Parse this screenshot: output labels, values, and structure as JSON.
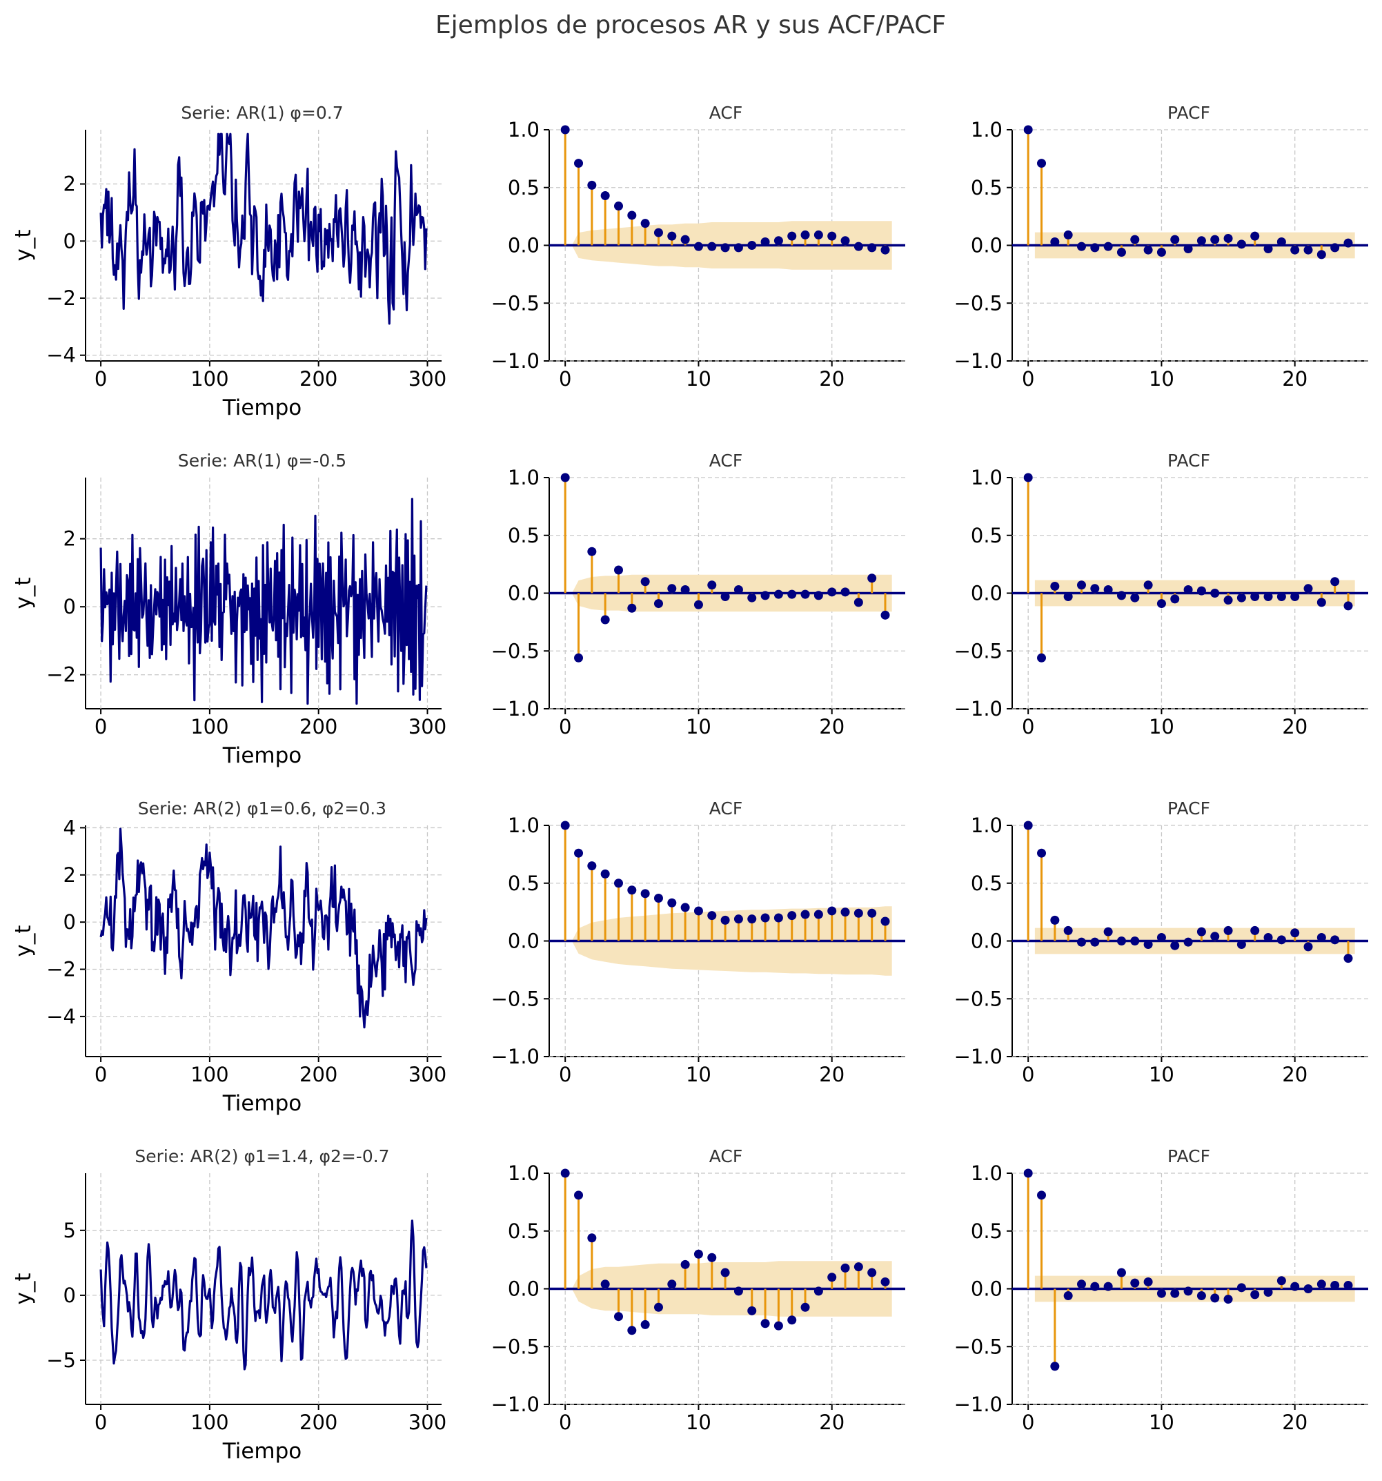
{
  "title": "Ejemplos de procesos AR y sus ACF/PACF",
  "colors": {
    "series": "#000080",
    "stem": "#e8960c",
    "band": "#f7e4bd",
    "grid": "#c8c8c8",
    "text": "#333333",
    "axis": "#000000"
  },
  "labels": {
    "xlabel_series": "Tiempo",
    "ylabel_series": "y_t",
    "acf": "ACF",
    "pacf": "PACF"
  },
  "rows": [
    {
      "title": "Serie: AR(1) φ=0.7",
      "series": {
        "type": "line",
        "n": 300,
        "phi": [
          0.7
        ],
        "noise_sd": 1.0,
        "ylim": [
          -4.2,
          3.9
        ],
        "yticks": [
          -4,
          -2,
          0,
          2
        ],
        "xticks": [
          0,
          100,
          200,
          300
        ],
        "xlim": [
          -14,
          313
        ]
      },
      "acf": {
        "type": "stem",
        "values": [
          1.0,
          0.71,
          0.52,
          0.43,
          0.34,
          0.26,
          0.19,
          0.11,
          0.08,
          0.05,
          -0.01,
          -0.01,
          -0.02,
          -0.02,
          0.0,
          0.03,
          0.04,
          0.08,
          0.09,
          0.09,
          0.08,
          0.04,
          -0.01,
          -0.02,
          -0.04
        ],
        "band_lo": [
          0.0,
          0.11,
          0.13,
          0.14,
          0.15,
          0.16,
          0.17,
          0.18,
          0.18,
          0.19,
          0.19,
          0.2,
          0.2,
          0.2,
          0.2,
          0.2,
          0.2,
          0.21,
          0.21,
          0.21,
          0.21,
          0.21,
          0.21,
          0.21,
          0.21
        ],
        "band_hi": [
          0.0,
          0.11,
          0.13,
          0.14,
          0.15,
          0.16,
          0.17,
          0.18,
          0.18,
          0.19,
          0.19,
          0.2,
          0.2,
          0.2,
          0.2,
          0.2,
          0.2,
          0.21,
          0.21,
          0.21,
          0.21,
          0.21,
          0.21,
          0.21,
          0.21
        ]
      },
      "pacf": {
        "type": "stem",
        "values": [
          1.0,
          0.71,
          0.03,
          0.09,
          -0.01,
          -0.02,
          -0.01,
          -0.06,
          0.05,
          -0.04,
          -0.06,
          0.05,
          -0.03,
          0.04,
          0.05,
          0.06,
          0.01,
          0.08,
          -0.03,
          0.03,
          -0.04,
          -0.04,
          -0.08,
          -0.02,
          0.02
        ],
        "band": 0.113
      }
    },
    {
      "title": "Serie: AR(1) φ=-0.5",
      "series": {
        "type": "line",
        "n": 300,
        "phi": [
          -0.5
        ],
        "noise_sd": 1.0,
        "ylim": [
          -3.0,
          3.8
        ],
        "yticks": [
          -2,
          0,
          2
        ],
        "xticks": [
          0,
          100,
          200,
          300
        ],
        "xlim": [
          -14,
          313
        ]
      },
      "acf": {
        "type": "stem",
        "values": [
          1.0,
          -0.56,
          0.36,
          -0.23,
          0.2,
          -0.13,
          0.1,
          -0.09,
          0.04,
          0.03,
          -0.1,
          0.07,
          -0.03,
          0.03,
          -0.04,
          -0.02,
          -0.01,
          -0.01,
          -0.01,
          -0.02,
          0.01,
          0.01,
          -0.08,
          0.13,
          -0.19
        ],
        "band_lo": [
          0.0,
          0.11,
          0.14,
          0.15,
          0.15,
          0.16,
          0.16,
          0.16,
          0.16,
          0.16,
          0.16,
          0.16,
          0.16,
          0.16,
          0.16,
          0.16,
          0.16,
          0.16,
          0.16,
          0.16,
          0.16,
          0.16,
          0.16,
          0.16,
          0.16
        ],
        "band_hi": [
          0.0,
          0.11,
          0.14,
          0.15,
          0.15,
          0.16,
          0.16,
          0.16,
          0.16,
          0.16,
          0.16,
          0.16,
          0.16,
          0.16,
          0.16,
          0.16,
          0.16,
          0.16,
          0.16,
          0.16,
          0.16,
          0.16,
          0.16,
          0.16,
          0.16
        ]
      },
      "pacf": {
        "type": "stem",
        "values": [
          1.0,
          -0.56,
          0.06,
          -0.03,
          0.07,
          0.04,
          0.03,
          -0.02,
          -0.04,
          0.07,
          -0.09,
          -0.05,
          0.03,
          0.02,
          0.0,
          -0.06,
          -0.04,
          -0.03,
          -0.03,
          -0.03,
          -0.03,
          0.04,
          -0.08,
          0.1,
          -0.11
        ],
        "band": 0.113
      }
    },
    {
      "title": "Serie: AR(2) φ1=0.6, φ2=0.3",
      "series": {
        "type": "line",
        "n": 300,
        "phi": [
          0.6,
          0.3
        ],
        "noise_sd": 1.0,
        "ylim": [
          -5.7,
          4.1
        ],
        "yticks": [
          -4,
          -2,
          0,
          2,
          4
        ],
        "xticks": [
          0,
          100,
          200,
          300
        ],
        "xlim": [
          -14,
          313
        ]
      },
      "acf": {
        "type": "stem",
        "values": [
          1.0,
          0.76,
          0.65,
          0.58,
          0.5,
          0.44,
          0.41,
          0.37,
          0.33,
          0.29,
          0.26,
          0.22,
          0.18,
          0.19,
          0.19,
          0.2,
          0.2,
          0.22,
          0.23,
          0.23,
          0.26,
          0.25,
          0.24,
          0.24,
          0.17
        ],
        "band_lo": [
          0.0,
          0.11,
          0.16,
          0.18,
          0.2,
          0.21,
          0.22,
          0.23,
          0.24,
          0.245,
          0.25,
          0.255,
          0.26,
          0.265,
          0.27,
          0.27,
          0.275,
          0.28,
          0.28,
          0.285,
          0.285,
          0.29,
          0.29,
          0.29,
          0.3
        ],
        "band_hi": [
          0.0,
          0.11,
          0.16,
          0.18,
          0.2,
          0.21,
          0.22,
          0.23,
          0.24,
          0.245,
          0.25,
          0.255,
          0.26,
          0.265,
          0.27,
          0.27,
          0.275,
          0.28,
          0.28,
          0.285,
          0.285,
          0.29,
          0.29,
          0.29,
          0.3
        ]
      },
      "pacf": {
        "type": "stem",
        "values": [
          1.0,
          0.76,
          0.18,
          0.09,
          -0.01,
          -0.01,
          0.08,
          0.0,
          0.0,
          -0.03,
          0.03,
          -0.04,
          -0.01,
          0.08,
          0.04,
          0.09,
          -0.03,
          0.09,
          0.03,
          0.01,
          0.07,
          -0.05,
          0.03,
          0.01,
          -0.15
        ],
        "band": 0.113
      }
    },
    {
      "title": "Serie: AR(2) φ1=1.4, φ2=-0.7",
      "series": {
        "type": "line",
        "n": 300,
        "phi": [
          1.4,
          -0.7
        ],
        "noise_sd": 1.0,
        "ylim": [
          -8.4,
          9.4
        ],
        "yticks": [
          -5,
          0,
          5
        ],
        "xticks": [
          0,
          100,
          200,
          300
        ],
        "xlim": [
          -14,
          313
        ]
      },
      "acf": {
        "type": "stem",
        "values": [
          1.0,
          0.81,
          0.44,
          0.04,
          -0.24,
          -0.36,
          -0.31,
          -0.16,
          0.04,
          0.21,
          0.3,
          0.27,
          0.14,
          -0.02,
          -0.19,
          -0.3,
          -0.32,
          -0.27,
          -0.16,
          -0.02,
          0.1,
          0.18,
          0.19,
          0.14,
          0.06
        ],
        "band_lo": [
          0.0,
          0.11,
          0.17,
          0.19,
          0.19,
          0.2,
          0.21,
          0.22,
          0.22,
          0.22,
          0.22,
          0.23,
          0.23,
          0.23,
          0.23,
          0.23,
          0.24,
          0.24,
          0.24,
          0.24,
          0.24,
          0.24,
          0.24,
          0.24,
          0.24
        ],
        "band_hi": [
          0.0,
          0.11,
          0.17,
          0.19,
          0.19,
          0.2,
          0.21,
          0.22,
          0.22,
          0.22,
          0.22,
          0.23,
          0.23,
          0.23,
          0.23,
          0.23,
          0.24,
          0.24,
          0.24,
          0.24,
          0.24,
          0.24,
          0.24,
          0.24,
          0.24
        ]
      },
      "pacf": {
        "type": "stem",
        "values": [
          1.0,
          0.81,
          -0.67,
          -0.06,
          0.04,
          0.02,
          0.02,
          0.14,
          0.05,
          0.06,
          -0.04,
          -0.04,
          -0.02,
          -0.06,
          -0.08,
          -0.09,
          0.01,
          -0.05,
          -0.03,
          0.07,
          0.02,
          0.0,
          0.04,
          0.03,
          0.03
        ],
        "band": 0.113
      }
    }
  ],
  "acf_axes": {
    "ylim": [
      -1.0,
      1.0
    ],
    "yticks": [
      -1.0,
      -0.5,
      0.0,
      0.5,
      1.0
    ],
    "ytick_labels": [
      "−1.0",
      "−0.5",
      "0.0",
      "0.5",
      "1.0"
    ],
    "xticks": [
      0,
      10,
      20
    ],
    "xlim": [
      -1.2,
      25.5
    ]
  },
  "chart_data": [
    {
      "type": "line",
      "title": "Serie: AR(1) φ=0.7",
      "xlabel": "Tiempo",
      "ylabel": "y_t",
      "ylim": [
        -4.2,
        3.9
      ]
    },
    {
      "type": "bar",
      "title": "ACF",
      "ylim": [
        -1,
        1
      ],
      "values": [
        1.0,
        0.71,
        0.52,
        0.43,
        0.34,
        0.26,
        0.19,
        0.11,
        0.08,
        0.05,
        -0.01,
        -0.01,
        -0.02,
        -0.02,
        0.0,
        0.03,
        0.04,
        0.08,
        0.09,
        0.09,
        0.08,
        0.04,
        -0.01,
        -0.02,
        -0.04
      ]
    },
    {
      "type": "bar",
      "title": "PACF",
      "ylim": [
        -1,
        1
      ],
      "values": [
        1.0,
        0.71,
        0.03,
        0.09,
        -0.01,
        -0.02,
        -0.01,
        -0.06,
        0.05,
        -0.04,
        -0.06,
        0.05,
        -0.03,
        0.04,
        0.05,
        0.06,
        0.01,
        0.08,
        -0.03,
        0.03,
        -0.04,
        -0.04,
        -0.08,
        -0.02,
        0.02
      ]
    },
    {
      "type": "line",
      "title": "Serie: AR(1) φ=-0.5",
      "xlabel": "Tiempo",
      "ylabel": "y_t",
      "ylim": [
        -3.0,
        3.8
      ]
    },
    {
      "type": "bar",
      "title": "ACF",
      "ylim": [
        -1,
        1
      ],
      "values": [
        1.0,
        -0.56,
        0.36,
        -0.23,
        0.2,
        -0.13,
        0.1,
        -0.09,
        0.04,
        0.03,
        -0.1,
        0.07,
        -0.03,
        0.03,
        -0.04,
        -0.02,
        -0.01,
        -0.01,
        -0.01,
        -0.02,
        0.01,
        0.01,
        -0.08,
        0.13,
        -0.19
      ]
    },
    {
      "type": "bar",
      "title": "PACF",
      "ylim": [
        -1,
        1
      ],
      "values": [
        1.0,
        -0.56,
        0.06,
        -0.03,
        0.07,
        0.04,
        0.03,
        -0.02,
        -0.04,
        0.07,
        -0.09,
        -0.05,
        0.03,
        0.02,
        0.0,
        -0.06,
        -0.04,
        -0.03,
        -0.03,
        -0.03,
        -0.03,
        0.04,
        -0.08,
        0.1,
        -0.11
      ]
    },
    {
      "type": "line",
      "title": "Serie: AR(2) φ1=0.6, φ2=0.3",
      "xlabel": "Tiempo",
      "ylabel": "y_t",
      "ylim": [
        -5.7,
        4.1
      ]
    },
    {
      "type": "bar",
      "title": "ACF",
      "ylim": [
        -1,
        1
      ],
      "values": [
        1.0,
        0.76,
        0.65,
        0.58,
        0.5,
        0.44,
        0.41,
        0.37,
        0.33,
        0.29,
        0.26,
        0.22,
        0.18,
        0.19,
        0.19,
        0.2,
        0.2,
        0.22,
        0.23,
        0.23,
        0.26,
        0.25,
        0.24,
        0.24,
        0.17
      ]
    },
    {
      "type": "bar",
      "title": "PACF",
      "ylim": [
        -1,
        1
      ],
      "values": [
        1.0,
        0.76,
        0.18,
        0.09,
        -0.01,
        -0.01,
        0.08,
        0.0,
        0.0,
        -0.03,
        0.03,
        -0.04,
        -0.01,
        0.08,
        0.04,
        0.09,
        -0.03,
        0.09,
        0.03,
        0.01,
        0.07,
        -0.05,
        0.03,
        0.01,
        -0.15
      ]
    },
    {
      "type": "line",
      "title": "Serie: AR(2) φ1=1.4, φ2=-0.7",
      "xlabel": "Tiempo",
      "ylabel": "y_t",
      "ylim": [
        -8.4,
        9.4
      ]
    },
    {
      "type": "bar",
      "title": "ACF",
      "ylim": [
        -1,
        1
      ],
      "values": [
        1.0,
        0.81,
        0.44,
        0.04,
        -0.24,
        -0.36,
        -0.31,
        -0.16,
        0.04,
        0.21,
        0.3,
        0.27,
        0.14,
        -0.02,
        -0.19,
        -0.3,
        -0.32,
        -0.27,
        -0.16,
        -0.02,
        0.1,
        0.18,
        0.19,
        0.14,
        0.06
      ]
    },
    {
      "type": "bar",
      "title": "PACF",
      "ylim": [
        -1,
        1
      ],
      "values": [
        1.0,
        0.81,
        -0.67,
        -0.06,
        0.04,
        0.02,
        0.02,
        0.14,
        0.05,
        0.06,
        -0.04,
        -0.04,
        -0.02,
        -0.06,
        -0.08,
        -0.09,
        0.01,
        -0.05,
        -0.03,
        0.07,
        0.02,
        0.0,
        0.04,
        0.03,
        0.03
      ]
    }
  ]
}
